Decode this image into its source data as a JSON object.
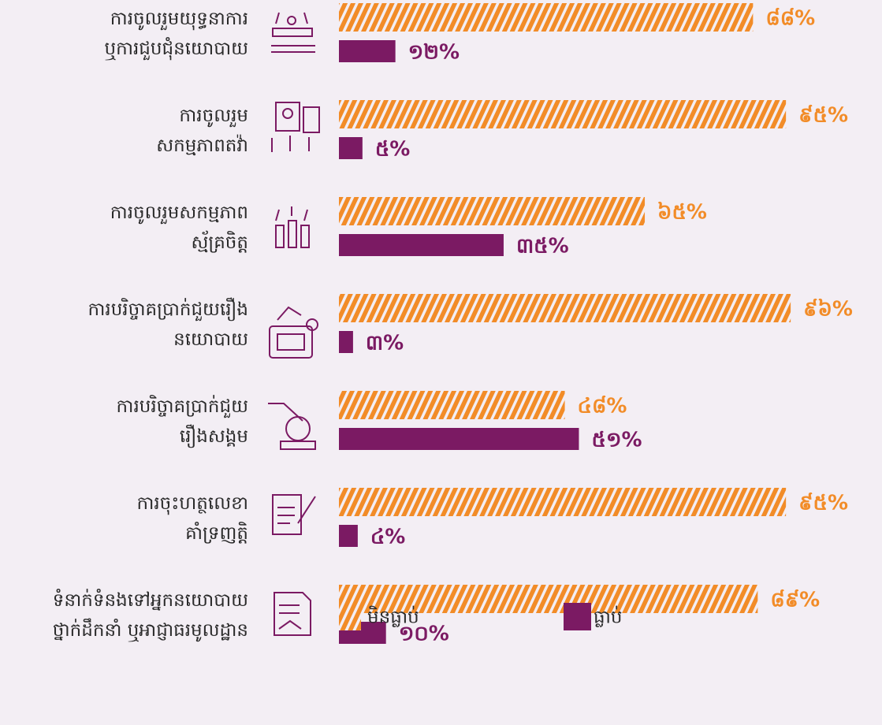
{
  "chart_data": {
    "type": "bar",
    "orientation": "horizontal",
    "categories": [
      "ការចូលរួមយុទ្ធនាការ\nឬការជួបជុំនយោបាយ",
      "ការចូលរួម\nសកម្មភាពតវ៉ា",
      "ការចូលរួមសកម្មភាព\nស្ម័គ្រចិត្ត",
      "ការបរិច្ចាគប្រាក់ជួយរឿង\nនយោបាយ",
      "ការបរិច្ចាគប្រាក់ជួយ\nរឿងសង្គម",
      "ការចុះហត្ថលេខា\nគាំទ្រញត្តិ",
      "ទំនាក់ទំនងទៅអ្នកនយោបាយ\nថ្នាក់ដឹកនាំ ឬអាជ្ញាធរមូលដ្ឋាន"
    ],
    "series": [
      {
        "name": "មិនធ្លាប់",
        "color": "#f28c28",
        "hatched": true,
        "values": [
          88,
          95,
          65,
          96,
          48,
          95,
          89
        ],
        "value_labels": [
          "៨៨%",
          "៩៥%",
          "៦៥%",
          "៩៦%",
          "៤៨%",
          "៩៥%",
          "៨៩%"
        ]
      },
      {
        "name": "ធ្លាប់",
        "color": "#7b1a63",
        "hatched": false,
        "values": [
          12,
          5,
          35,
          3,
          51,
          4,
          10
        ],
        "value_labels": [
          "១២%",
          "៥%",
          "៣៥%",
          "៣%",
          "៥១%",
          "៤%",
          "១០%"
        ]
      }
    ],
    "xlim": [
      0,
      100
    ],
    "legend": "bottom"
  }
}
